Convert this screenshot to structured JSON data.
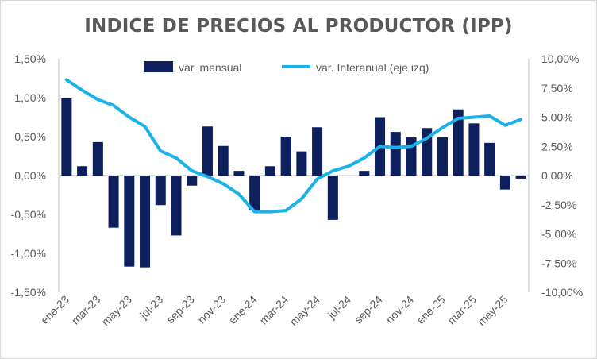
{
  "chart_data": {
    "type": "bar+line",
    "title": "INDICE DE PRECIOS AL PRODUCTOR (IPP)",
    "x": [
      "ene-23",
      "feb-23",
      "mar-23",
      "abr-23",
      "may-23",
      "jun-23",
      "jul-23",
      "ago-23",
      "sep-23",
      "oct-23",
      "nov-23",
      "dic-23",
      "ene-24",
      "feb-24",
      "mar-24",
      "abr-24",
      "may-24",
      "jun-24",
      "jul-24",
      "ago-24",
      "sep-24",
      "oct-24",
      "nov-24",
      "dic-24",
      "ene-25",
      "feb-25",
      "mar-25",
      "abr-25",
      "may-25",
      "jun-25"
    ],
    "x_tick_labels": [
      "ene-23",
      "mar-23",
      "may-23",
      "jul-23",
      "sep-23",
      "nov-23",
      "ene-24",
      "mar-24",
      "may-24",
      "jul-24",
      "sep-24",
      "nov-24",
      "ene-25",
      "mar-25",
      "may-25"
    ],
    "series": [
      {
        "name": "var. mensual",
        "type": "bar",
        "axis": "left",
        "color": "#0d1f5c",
        "values": [
          0.99,
          0.12,
          0.43,
          -0.67,
          -1.17,
          -1.18,
          -0.38,
          -0.77,
          -0.13,
          0.63,
          0.38,
          0.06,
          -0.45,
          0.12,
          0.5,
          0.31,
          0.62,
          -0.57,
          0.0,
          0.06,
          0.75,
          0.56,
          0.49,
          0.61,
          0.49,
          0.85,
          0.67,
          0.42,
          -0.18,
          -0.04
        ]
      },
      {
        "name": "var. Interanual (eje izq)",
        "type": "line",
        "axis": "right",
        "color": "#1ab2e8",
        "values": [
          8.2,
          7.3,
          6.5,
          6.0,
          5.0,
          4.2,
          2.1,
          1.5,
          0.4,
          -0.1,
          -0.7,
          -1.6,
          -3.1,
          -3.1,
          -3.0,
          -2.0,
          -0.3,
          0.4,
          0.8,
          1.5,
          2.5,
          2.4,
          2.5,
          3.2,
          4.1,
          4.9,
          5.0,
          5.1,
          4.3,
          4.8
        ]
      }
    ],
    "y_left": {
      "range": [
        -1.5,
        1.5
      ],
      "ticks": [
        "1,50%",
        "1,00%",
        "0,50%",
        "0,00%",
        "-0,50%",
        "-1,00%",
        "-1,50%"
      ]
    },
    "y_right": {
      "range": [
        -10,
        10
      ],
      "ticks": [
        "10,00%",
        "7,50%",
        "5,00%",
        "2,50%",
        "0,00%",
        "-2,50%",
        "-5,00%",
        "-7,50%",
        "-10,00%"
      ]
    },
    "legend": {
      "placement": "top",
      "items": [
        "var. mensual",
        "var. Interanual (eje izq)"
      ]
    },
    "grid": false
  }
}
